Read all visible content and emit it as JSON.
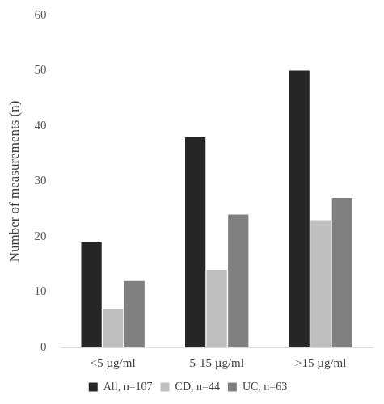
{
  "chart_data": {
    "type": "bar",
    "y_label": "Number of measurements (n)",
    "categories": [
      "<5 µg/ml",
      "5-15 µg/ml",
      ">15 µg/ml"
    ],
    "series": [
      {
        "name": "All, n=107",
        "color": "#262626",
        "values": [
          19,
          38,
          50
        ]
      },
      {
        "name": "CD, n=44",
        "color": "#bfbfbf",
        "values": [
          7,
          14,
          23
        ]
      },
      {
        "name": "UC, n=63",
        "color": "#808080",
        "values": [
          12,
          24,
          27
        ]
      }
    ],
    "ylim": [
      0,
      60
    ],
    "yticks": [
      0,
      10,
      20,
      30,
      40,
      50,
      60
    ],
    "grid": false,
    "legend": "bottom"
  }
}
